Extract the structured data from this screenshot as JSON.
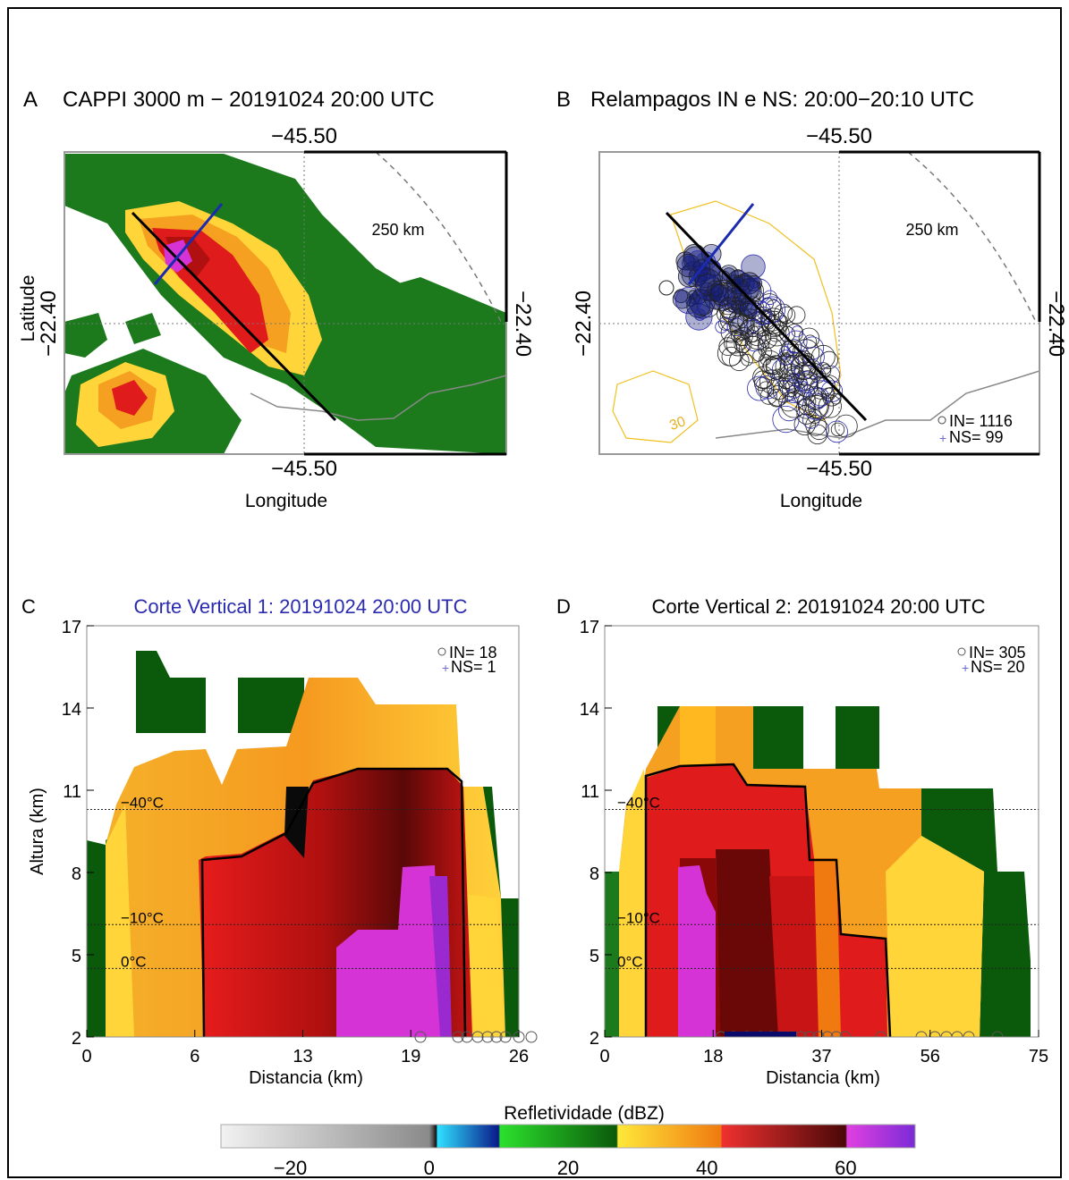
{
  "colors": {
    "magenta": "#d633d6",
    "darkred": "#5a0a0a",
    "red": "#e01b1b",
    "orange": "#f59a1f",
    "yellow": "#ffe23a",
    "green": "#1c7a1c",
    "darkgreen": "#0b5a0b",
    "vs1_title": "#2b2bb0",
    "cross_blue": "#1a2bb0"
  },
  "panel_a": {
    "letter": "A",
    "title": "CAPPI 3000 m − 20191024 20:00 UTC",
    "lon_top": "−45.50",
    "lon_bottom": "−45.50",
    "lat_left": "−22.40",
    "lat_right": "−22.40",
    "ylabel": "Latitude",
    "xlabel": "Longitude",
    "range_ring": "250 km"
  },
  "panel_b": {
    "letter": "B",
    "title": "Relampagos IN e NS: 20:00−20:10 UTC",
    "lon_top": "−45.50",
    "lon_bottom": "−45.50",
    "lat_left": "−22.40",
    "lat_right": "−22.40",
    "xlabel": "Longitude",
    "range_ring": "250 km",
    "contour_label": "30",
    "legend_in": "IN= 1116",
    "legend_ns": "NS= 99"
  },
  "chart_data": [
    {
      "panel": "C",
      "type": "heatmap",
      "title": "Corte Vertical 1: 20191024 20:00 UTC",
      "xlabel": "Distancia (km)",
      "ylabel": "Altura (km)",
      "xticks": [
        "0",
        "6",
        "13",
        "19",
        "26"
      ],
      "yticks": [
        "2",
        "5",
        "8",
        "11",
        "14",
        "17"
      ],
      "xlim": [
        0,
        26
      ],
      "ylim": [
        2,
        17
      ],
      "isotherms": [
        {
          "label": "−40°C",
          "height": 10.3
        },
        {
          "label": "−10°C",
          "height": 6.1
        },
        {
          "label": "0°C",
          "height": 4.5
        }
      ],
      "legend_in": "IN= 18",
      "legend_ns": "NS= 1"
    },
    {
      "panel": "D",
      "type": "heatmap",
      "title": "Corte Vertical 2: 20191024 20:00 UTC",
      "xlabel": "Distancia (km)",
      "ylabel": "",
      "xticks": [
        "0",
        "18",
        "37",
        "56",
        "75"
      ],
      "yticks": [
        "2",
        "5",
        "8",
        "11",
        "14",
        "17"
      ],
      "xlim": [
        0,
        75
      ],
      "ylim": [
        2,
        17
      ],
      "isotherms": [
        {
          "label": "−40°C",
          "height": 10.3
        },
        {
          "label": "−10°C",
          "height": 6.1
        },
        {
          "label": "0°C",
          "height": 4.5
        }
      ],
      "legend_in": "IN= 305",
      "legend_ns": "NS= 20"
    },
    {
      "panel": "colorbar",
      "type": "heatmap",
      "title": "Refletividade (dBZ)",
      "ticks": [
        "−20",
        "0",
        "20",
        "40",
        "60"
      ],
      "tick_values": [
        -20,
        0,
        20,
        40,
        60
      ],
      "range": [
        -30,
        70
      ]
    }
  ]
}
